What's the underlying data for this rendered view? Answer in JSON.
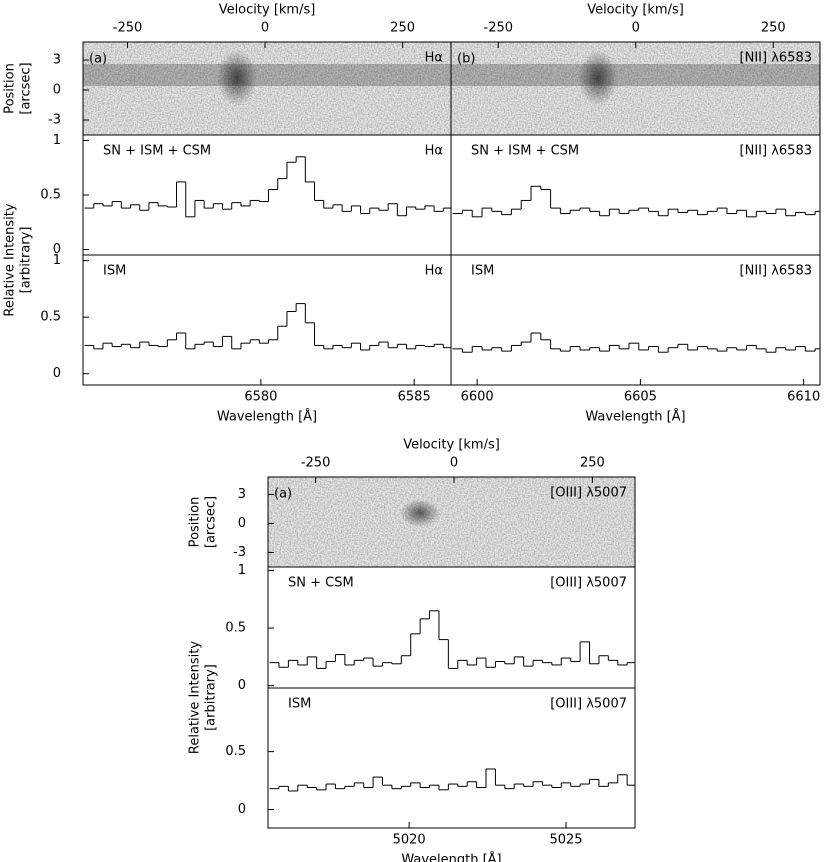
{
  "chart_data": [
    {
      "type": "image",
      "x2label": "Velocity [km/s]",
      "xlim": [
        -331,
        338
      ],
      "xticks": [
        -250,
        0,
        250
      ],
      "ylabel": [
        "Position",
        "[arcsec]"
      ],
      "ylim": [
        -4.5,
        4.8
      ],
      "yticks": [
        3,
        0,
        -3
      ],
      "panel_label": "(a)",
      "line_label": "Hα"
    },
    {
      "type": "step",
      "region_label": "SN + ISM + CSM",
      "line_label": "Hα",
      "ylabel": [
        "Relative Intensity",
        "[arbitrary]"
      ],
      "ylim": [
        -0.05,
        1.05
      ],
      "yticks": [
        1,
        0.5,
        0
      ],
      "xlim": [
        6574.2,
        6586.2
      ],
      "x": [
        6574.4,
        6574.7,
        6575.0,
        6575.3,
        6575.6,
        6575.9,
        6576.2,
        6576.5,
        6576.8,
        6577.1,
        6577.4,
        6577.7,
        6578.0,
        6578.3,
        6578.6,
        6578.9,
        6579.2,
        6579.5,
        6579.8,
        6580.1,
        6580.4,
        6580.7,
        6581.0,
        6581.3,
        6581.6,
        6581.9,
        6582.2,
        6582.5,
        6582.8,
        6583.1,
        6583.4,
        6583.7,
        6584.0,
        6584.3,
        6584.6,
        6584.9,
        6585.2,
        6585.5,
        6585.8,
        6586.1
      ],
      "values": [
        0.38,
        0.42,
        0.4,
        0.44,
        0.38,
        0.41,
        0.36,
        0.43,
        0.4,
        0.39,
        0.62,
        0.3,
        0.45,
        0.38,
        0.42,
        0.37,
        0.43,
        0.4,
        0.45,
        0.44,
        0.55,
        0.65,
        0.8,
        0.85,
        0.62,
        0.45,
        0.38,
        0.41,
        0.35,
        0.4,
        0.33,
        0.38,
        0.36,
        0.42,
        0.31,
        0.39,
        0.37,
        0.4,
        0.35,
        0.38
      ]
    },
    {
      "type": "step",
      "region_label": "ISM",
      "line_label": "Hα",
      "ylim": [
        -0.1,
        1.05
      ],
      "yticks": [
        1,
        0.5,
        0
      ],
      "xlim": [
        6574.2,
        6586.2
      ],
      "xticks": [
        6580,
        6585
      ],
      "xlabel": "Wavelength [Å]",
      "x": [
        6574.4,
        6574.7,
        6575.0,
        6575.3,
        6575.6,
        6575.9,
        6576.2,
        6576.5,
        6576.8,
        6577.1,
        6577.4,
        6577.7,
        6578.0,
        6578.3,
        6578.6,
        6578.9,
        6579.2,
        6579.5,
        6579.8,
        6580.1,
        6580.4,
        6580.7,
        6581.0,
        6581.3,
        6581.6,
        6581.9,
        6582.2,
        6582.5,
        6582.8,
        6583.1,
        6583.4,
        6583.7,
        6584.0,
        6584.3,
        6584.6,
        6584.9,
        6585.2,
        6585.5,
        6585.8,
        6586.1
      ],
      "values": [
        0.25,
        0.22,
        0.27,
        0.24,
        0.26,
        0.23,
        0.28,
        0.25,
        0.24,
        0.3,
        0.36,
        0.22,
        0.26,
        0.28,
        0.24,
        0.33,
        0.22,
        0.27,
        0.3,
        0.27,
        0.3,
        0.42,
        0.55,
        0.62,
        0.45,
        0.25,
        0.22,
        0.25,
        0.23,
        0.27,
        0.21,
        0.25,
        0.28,
        0.23,
        0.26,
        0.22,
        0.25,
        0.24,
        0.26,
        0.23
      ]
    },
    {
      "type": "image",
      "x2label": "Velocity [km/s]",
      "xlim": [
        -336,
        335
      ],
      "xticks": [
        -250,
        0,
        250
      ],
      "ylim": [
        -4.5,
        4.8
      ],
      "panel_label": "(b)",
      "line_label": "[NII] λ6583"
    },
    {
      "type": "step",
      "region_label": "SN + ISM + CSM",
      "line_label": "[NII] λ6583",
      "ylim": [
        -0.05,
        1.05
      ],
      "xlim": [
        6599.2,
        6610.5
      ],
      "x": [
        6599.4,
        6599.7,
        6600.0,
        6600.3,
        6600.6,
        6600.9,
        6601.2,
        6601.5,
        6601.8,
        6602.1,
        6602.4,
        6602.7,
        6603.0,
        6603.3,
        6603.6,
        6603.9,
        6604.2,
        6604.5,
        6604.8,
        6605.1,
        6605.4,
        6605.7,
        6606.0,
        6606.3,
        6606.6,
        6606.9,
        6607.2,
        6607.5,
        6607.8,
        6608.1,
        6608.4,
        6608.7,
        6609.0,
        6609.3,
        6609.6,
        6609.9,
        6610.2,
        6610.5
      ],
      "values": [
        0.33,
        0.36,
        0.3,
        0.38,
        0.35,
        0.32,
        0.37,
        0.45,
        0.58,
        0.55,
        0.38,
        0.33,
        0.36,
        0.38,
        0.35,
        0.31,
        0.37,
        0.33,
        0.36,
        0.38,
        0.35,
        0.31,
        0.37,
        0.34,
        0.36,
        0.32,
        0.35,
        0.38,
        0.33,
        0.36,
        0.3,
        0.35,
        0.33,
        0.37,
        0.31,
        0.34,
        0.32,
        0.35
      ]
    },
    {
      "type": "step",
      "region_label": "ISM",
      "line_label": "[NII] λ6583",
      "ylim": [
        -0.1,
        1.05
      ],
      "xlim": [
        6599.2,
        6610.5
      ],
      "xticks": [
        6600,
        6605,
        6610
      ],
      "xlabel": "Wavelength [Å]",
      "x": [
        6599.4,
        6599.7,
        6600.0,
        6600.3,
        6600.6,
        6600.9,
        6601.2,
        6601.5,
        6601.8,
        6602.1,
        6602.4,
        6602.7,
        6603.0,
        6603.3,
        6603.6,
        6603.9,
        6604.2,
        6604.5,
        6604.8,
        6605.1,
        6605.4,
        6605.7,
        6606.0,
        6606.3,
        6606.6,
        6606.9,
        6607.2,
        6607.5,
        6607.8,
        6608.1,
        6608.4,
        6608.7,
        6609.0,
        6609.3,
        6609.6,
        6609.9,
        6610.2,
        6610.5
      ],
      "values": [
        0.22,
        0.19,
        0.24,
        0.21,
        0.23,
        0.2,
        0.25,
        0.28,
        0.36,
        0.3,
        0.22,
        0.2,
        0.24,
        0.21,
        0.23,
        0.2,
        0.25,
        0.22,
        0.27,
        0.21,
        0.24,
        0.19,
        0.23,
        0.26,
        0.21,
        0.24,
        0.22,
        0.2,
        0.23,
        0.21,
        0.25,
        0.22,
        0.19,
        0.23,
        0.21,
        0.24,
        0.2,
        0.22
      ]
    },
    {
      "type": "image",
      "x2label": "Velocity [km/s]",
      "xlim": [
        -336,
        327
      ],
      "xticks": [
        -250,
        0,
        250
      ],
      "ylabel": [
        "Position",
        "[arcsec]"
      ],
      "ylim": [
        -4.5,
        4.8
      ],
      "yticks": [
        3,
        0,
        -3
      ],
      "panel_label": "(a)",
      "line_label": "[OIII] λ5007"
    },
    {
      "type": "step",
      "region_label": "SN + CSM",
      "line_label": "[OIII] λ5007",
      "ylabel": [
        "Relative Intensity",
        "[arbitrary]"
      ],
      "ylim": [
        -0.02,
        1.03
      ],
      "yticks": [
        1,
        0.5,
        0
      ],
      "xlim": [
        5015.5,
        5027.2
      ],
      "x": [
        5015.7,
        5016.0,
        5016.3,
        5016.6,
        5016.9,
        5017.2,
        5017.5,
        5017.8,
        5018.1,
        5018.4,
        5018.7,
        5019.0,
        5019.3,
        5019.6,
        5019.9,
        5020.2,
        5020.5,
        5020.8,
        5021.1,
        5021.4,
        5021.7,
        5022.0,
        5022.3,
        5022.6,
        5022.9,
        5023.2,
        5023.5,
        5023.8,
        5024.1,
        5024.4,
        5024.7,
        5025.0,
        5025.3,
        5025.6,
        5025.9,
        5026.2,
        5026.5,
        5026.8,
        5027.1
      ],
      "values": [
        0.2,
        0.16,
        0.22,
        0.18,
        0.25,
        0.15,
        0.21,
        0.27,
        0.18,
        0.22,
        0.24,
        0.17,
        0.2,
        0.19,
        0.26,
        0.45,
        0.58,
        0.65,
        0.4,
        0.15,
        0.22,
        0.18,
        0.24,
        0.16,
        0.21,
        0.19,
        0.25,
        0.17,
        0.22,
        0.2,
        0.18,
        0.24,
        0.21,
        0.38,
        0.19,
        0.26,
        0.22,
        0.18,
        0.2
      ]
    },
    {
      "type": "step",
      "region_label": "ISM",
      "line_label": "[OIII] λ5007",
      "ylim": [
        -0.16,
        1.05
      ],
      "yticks": [
        0.5,
        0
      ],
      "xlim": [
        5015.5,
        5027.2
      ],
      "xticks": [
        5020,
        5025
      ],
      "xlabel": "Wavelength [Å]",
      "x": [
        5015.7,
        5016.0,
        5016.3,
        5016.6,
        5016.9,
        5017.2,
        5017.5,
        5017.8,
        5018.1,
        5018.4,
        5018.7,
        5019.0,
        5019.3,
        5019.6,
        5019.9,
        5020.2,
        5020.5,
        5020.8,
        5021.1,
        5021.4,
        5021.7,
        5022.0,
        5022.3,
        5022.6,
        5022.9,
        5023.2,
        5023.5,
        5023.8,
        5024.1,
        5024.4,
        5024.7,
        5025.0,
        5025.3,
        5025.6,
        5025.9,
        5026.2,
        5026.5,
        5026.8,
        5027.1
      ],
      "values": [
        0.18,
        0.2,
        0.16,
        0.21,
        0.19,
        0.17,
        0.22,
        0.18,
        0.2,
        0.23,
        0.19,
        0.28,
        0.21,
        0.18,
        0.2,
        0.23,
        0.19,
        0.21,
        0.17,
        0.22,
        0.2,
        0.24,
        0.19,
        0.35,
        0.21,
        0.18,
        0.22,
        0.2,
        0.24,
        0.21,
        0.19,
        0.23,
        0.2,
        0.22,
        0.26,
        0.2,
        0.23,
        0.3,
        0.21
      ]
    }
  ]
}
